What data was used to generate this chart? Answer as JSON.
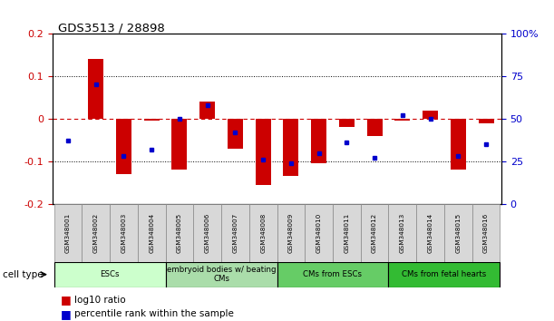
{
  "title": "GDS3513 / 28898",
  "samples": [
    "GSM348001",
    "GSM348002",
    "GSM348003",
    "GSM348004",
    "GSM348005",
    "GSM348006",
    "GSM348007",
    "GSM348008",
    "GSM348009",
    "GSM348010",
    "GSM348011",
    "GSM348012",
    "GSM348013",
    "GSM348014",
    "GSM348015",
    "GSM348016"
  ],
  "log10_ratio": [
    0.0,
    0.14,
    -0.13,
    -0.005,
    -0.12,
    0.04,
    -0.07,
    -0.155,
    -0.135,
    -0.105,
    -0.02,
    -0.04,
    -0.005,
    0.02,
    -0.12,
    -0.01
  ],
  "percentile_rank": [
    37,
    70,
    28,
    32,
    50,
    58,
    42,
    26,
    24,
    30,
    36,
    27,
    52,
    50,
    28,
    35
  ],
  "ylim_left": [
    -0.2,
    0.2
  ],
  "ylim_right": [
    0,
    100
  ],
  "yticks_left": [
    -0.2,
    -0.1,
    0.0,
    0.1,
    0.2
  ],
  "yticks_right": [
    0,
    25,
    50,
    75,
    100
  ],
  "red_color": "#cc0000",
  "blue_color": "#0000cc",
  "bar_width": 0.55,
  "ct_colors": [
    "#ccffcc",
    "#aaddaa",
    "#66cc66",
    "#33bb33"
  ],
  "ct_labels": [
    "ESCs",
    "embryoid bodies w/ beating\nCMs",
    "CMs from ESCs",
    "CMs from fetal hearts"
  ],
  "ct_ranges": [
    [
      0,
      3
    ],
    [
      4,
      7
    ],
    [
      8,
      11
    ],
    [
      12,
      15
    ]
  ]
}
